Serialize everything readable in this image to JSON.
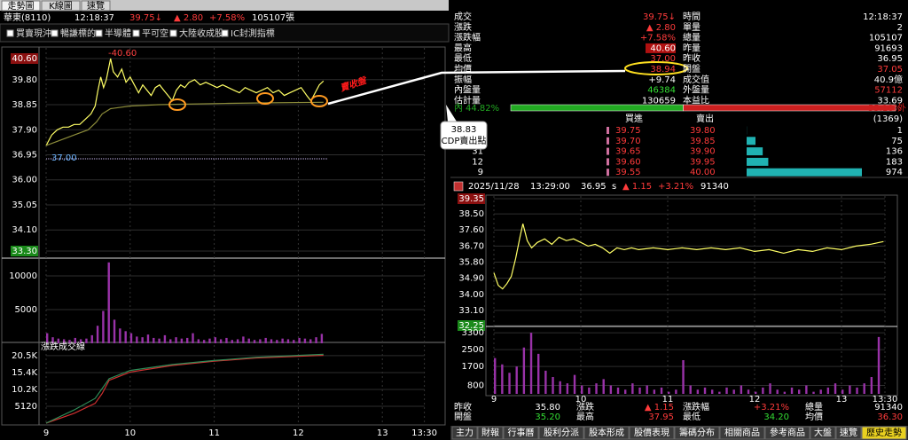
{
  "tabs": [
    "走勢圖",
    "K線圖",
    "速覽"
  ],
  "header": {
    "name": "華東(8110)",
    "time": "12:18:37",
    "price": "39.75↓",
    "change": "▲ 2.80",
    "change_pct": "+7.58%",
    "volume": "105107張"
  },
  "toolbar": [
    "買賣現沖",
    "暢謙標的",
    "半導體",
    "平可空",
    "大陸收成股",
    "IC封測指標"
  ],
  "annotations": {
    "peak": "-40.60",
    "ref_line": "37.00",
    "handwriting": "賣收盤",
    "callout_value": "38.83",
    "callout_label": "CDP賣出點"
  },
  "quote_table": [
    {
      "l1": "成交",
      "v1": "39.75↓",
      "c1": "#ff3b3b",
      "l2": "時間",
      "v2": "12:18:37",
      "c2": "#ffffff"
    },
    {
      "l1": "漲跌",
      "v1": "▲ 2.80",
      "c1": "#ff3b3b",
      "l2": "單量",
      "v2": "2",
      "c2": "#ffffff"
    },
    {
      "l1": "漲跌幅",
      "v1": "+7.58%",
      "c1": "#ff3b3b",
      "l2": "總量",
      "v2": "105107",
      "c2": "#ffffff"
    },
    {
      "l1": "最高",
      "v1": "40.60",
      "c1": "#ffffff",
      "bg1": "#b01010",
      "l2": "昨量",
      "v2": "91693",
      "c2": "#ffffff"
    },
    {
      "l1": "最低",
      "v1": "37.00",
      "c1": "#ff3b3b",
      "l2": "昨收",
      "v2": "36.95",
      "c2": "#ffffff"
    },
    {
      "l1": "均價",
      "v1": "38.94",
      "c1": "#ff3b3b",
      "l2": "開盤",
      "v2": "37.05",
      "c2": "#ff3b3b"
    },
    {
      "l1": "振幅",
      "v1": "+9.74",
      "c1": "#ffffff",
      "l2": "成交值",
      "v2": "40.9億",
      "c2": "#ffffff"
    },
    {
      "l1": "內盤量",
      "v1": "46384",
      "c1": "#33dd33",
      "l2": "外盤量",
      "v2": "57112",
      "c2": "#ff3b3b"
    },
    {
      "l1": "估計量",
      "v1": "130659",
      "c1": "#ffffff",
      "l2": "本益比",
      "v2": "33.69",
      "c2": "#ffffff"
    }
  ],
  "inner_outer": {
    "inner": {
      "label": "內",
      "value": 44.82,
      "value_label": "44.82%",
      "color": "#22aa22"
    },
    "outer": {
      "label": "外",
      "value": 55.18,
      "value_label": "55.18%",
      "color": "#cc1f1f"
    }
  },
  "order_book": {
    "bid_header": "買進",
    "ask_header": "賣出",
    "total": "(1369)",
    "bid_volumes": [
      null,
      null,
      "31",
      "12",
      "9"
    ],
    "bid_prices": [
      "39.75",
      "39.70",
      "39.65",
      "39.60",
      "39.55"
    ],
    "ask_prices": [
      "39.80",
      "39.85",
      "39.90",
      "39.95",
      "40.00"
    ],
    "ask_volumes": [
      1,
      75,
      136,
      183,
      974
    ],
    "ask_bar_color": "#20b2b2"
  },
  "history": {
    "date": "2025/11/28",
    "time": "13:29:00",
    "price": "36.95",
    "flag": "s",
    "change": "▲ 1.15",
    "change_pct": "+3.21%",
    "volume": "91340",
    "summary": [
      [
        {
          "label": "昨收",
          "value": "35.80",
          "color": "#ffffff"
        },
        {
          "label": "漲跌",
          "value": "▲ 1.15",
          "color": "#ff3b3b"
        },
        {
          "label": "漲跌幅",
          "value": "+3.21%",
          "color": "#ff3b3b"
        },
        {
          "label": "總量",
          "value": "91340",
          "color": "#ffffff"
        }
      ],
      [
        {
          "label": "開盤",
          "value": "35.20",
          "color": "#33dd33"
        },
        {
          "label": "最高",
          "value": "37.95",
          "color": "#ff3b3b"
        },
        {
          "label": "最低",
          "value": "34.20",
          "color": "#33dd33"
        },
        {
          "label": "均價",
          "value": "36.30",
          "color": "#ff3b3b"
        }
      ]
    ]
  },
  "bottom_tabs": [
    "主力",
    "財報",
    "行事曆",
    "股利分派",
    "股本形成",
    "股價表現",
    "籌碼分布",
    "相關商品",
    "參考商品",
    "大盤",
    "速覽",
    "歷史走勢"
  ],
  "charts": {
    "intraday": {
      "type": "line",
      "xlim": [
        0,
        270
      ],
      "xticks": [
        {
          "value": 0,
          "label": "9"
        },
        {
          "value": 60,
          "label": "10"
        },
        {
          "value": 120,
          "label": "11"
        },
        {
          "value": 180,
          "label": "12"
        },
        {
          "value": 240,
          "label": "13"
        },
        {
          "value": 270,
          "label": "13:30"
        }
      ],
      "price": {
        "ylim": [
          33.3,
          40.6
        ],
        "yticks": [
          {
            "value": 40.6,
            "label": "40.60",
            "bg": "#8b1010"
          },
          {
            "value": 39.8,
            "label": "39.80"
          },
          {
            "value": 38.85,
            "label": "38.85"
          },
          {
            "value": 37.9,
            "label": "37.90"
          },
          {
            "value": 36.95,
            "label": "36.95"
          },
          {
            "value": 36.0,
            "label": "36.00"
          },
          {
            "value": 35.05,
            "label": "35.05"
          },
          {
            "value": 34.1,
            "label": "34.10"
          },
          {
            "value": 33.3,
            "label": "33.30",
            "bg": "#1a8a1a"
          }
        ],
        "series": [
          {
            "color": "#ffff66",
            "x": [
              0,
              4,
              8,
              12,
              16,
              20,
              24,
              28,
              32,
              35,
              37,
              39,
              41,
              43,
              46,
              48,
              51,
              54,
              57,
              60,
              63,
              66,
              69,
              72,
              75,
              78,
              81,
              84,
              87,
              90,
              93,
              96,
              99,
              102,
              106,
              110,
              114,
              118,
              122,
              126,
              130,
              134,
              138,
              142,
              146,
              150,
              154,
              158,
              162,
              166,
              170,
              174,
              178,
              182,
              186,
              189,
              192,
              195,
              198
            ],
            "values": [
              37.3,
              37.7,
              37.9,
              38.0,
              38.0,
              38.1,
              38.1,
              38.3,
              38.5,
              38.8,
              39.4,
              39.9,
              39.5,
              39.8,
              40.6,
              40.1,
              39.9,
              40.2,
              39.7,
              39.9,
              39.6,
              39.3,
              39.6,
              39.4,
              39.2,
              39.5,
              39.6,
              39.4,
              39.2,
              39.0,
              39.4,
              39.6,
              39.5,
              39.7,
              39.8,
              39.6,
              39.7,
              39.6,
              39.5,
              39.6,
              39.5,
              39.4,
              39.3,
              39.5,
              39.4,
              39.3,
              39.4,
              39.5,
              39.3,
              39.4,
              39.2,
              39.3,
              39.4,
              39.5,
              39.2,
              39.0,
              39.3,
              39.6,
              39.75
            ]
          },
          {
            "color": "#8c8c3a",
            "x": [
              0,
              20,
              30,
              36,
              40,
              46,
              60,
              80,
              100,
              130,
              160,
              198
            ],
            "values": [
              37.3,
              37.7,
              37.9,
              38.2,
              38.5,
              38.7,
              38.8,
              38.85,
              38.87,
              38.9,
              38.92,
              38.94
            ]
          }
        ]
      },
      "volume": {
        "type": "bar",
        "color": "#9932a8",
        "ylim": [
          0,
          12500
        ],
        "yticks": [
          5000,
          10000
        ],
        "x": [
          0,
          4,
          8,
          12,
          16,
          20,
          24,
          28,
          32,
          36,
          40,
          44,
          48,
          52,
          56,
          60,
          64,
          68,
          72,
          76,
          80,
          84,
          88,
          92,
          96,
          100,
          104,
          108,
          112,
          116,
          120,
          124,
          128,
          132,
          136,
          140,
          144,
          148,
          152,
          156,
          160,
          164,
          168,
          172,
          176,
          180,
          184,
          188,
          192,
          196
        ],
        "values": [
          1500,
          900,
          700,
          600,
          500,
          800,
          600,
          700,
          1200,
          2600,
          4800,
          12000,
          3500,
          2200,
          1800,
          1500,
          1000,
          900,
          1300,
          800,
          700,
          1200,
          600,
          900,
          700,
          800,
          1500,
          600,
          500,
          700,
          900,
          600,
          800,
          500,
          600,
          1000,
          700,
          500,
          600,
          800,
          600,
          500,
          700,
          600,
          500,
          800,
          700,
          600,
          900,
          1400
        ]
      },
      "cumulative": {
        "type": "line",
        "title": "漲跌成交線",
        "ylim": [
          0,
          24500
        ],
        "yticks": [
          5120,
          {
            "value": 10240,
            "label": "10.2K"
          },
          {
            "value": 15360,
            "label": "15.4K"
          },
          {
            "value": 20480,
            "label": "20.5K"
          }
        ],
        "series": [
          {
            "color": "#d03030",
            "x": [
              0,
              20,
              35,
              40,
              45,
              60,
              90,
              120,
              150,
              198
            ],
            "values": [
              0,
              3000,
              6000,
              9000,
              13000,
              15500,
              17500,
              18800,
              19800,
              20600
            ]
          },
          {
            "color": "#2e8b57",
            "x": [
              0,
              20,
              35,
              40,
              45,
              60,
              90,
              120,
              150,
              198
            ],
            "values": [
              0,
              4000,
              7500,
              10500,
              13500,
              16000,
              17800,
              19000,
              20000,
              20900
            ]
          }
        ]
      }
    },
    "historical": {
      "type": "line",
      "xlim": [
        0,
        270
      ],
      "xticks": [
        {
          "value": 0,
          "label": "9"
        },
        {
          "value": 60,
          "label": "10"
        },
        {
          "value": 120,
          "label": "11"
        },
        {
          "value": 180,
          "label": "12"
        },
        {
          "value": 240,
          "label": "13"
        },
        {
          "value": 270,
          "label": "13:30"
        }
      ],
      "price": {
        "ylim": [
          32.25,
          39.35
        ],
        "yticks": [
          {
            "value": 39.35,
            "label": "39.35",
            "bg": "#8b1010"
          },
          {
            "value": 38.5,
            "label": "38.50"
          },
          {
            "value": 37.6,
            "label": "37.60"
          },
          {
            "value": 36.7,
            "label": "36.70"
          },
          {
            "value": 35.8,
            "label": "35.80"
          },
          {
            "value": 34.9,
            "label": "34.90"
          },
          {
            "value": 34.0,
            "label": "34.00"
          },
          {
            "value": 33.1,
            "label": "33.10"
          },
          {
            "value": 32.25,
            "label": "32.25",
            "bg": "#1a8a1a"
          }
        ],
        "series": [
          {
            "color": "#ffff66",
            "x": [
              0,
              3,
              6,
              9,
              12,
              15,
              18,
              20,
              23,
              26,
              30,
              35,
              40,
              45,
              50,
              55,
              60,
              65,
              70,
              75,
              80,
              85,
              90,
              95,
              100,
              110,
              120,
              130,
              140,
              150,
              160,
              170,
              180,
              190,
              200,
              210,
              220,
              230,
              240,
              250,
              260,
              266,
              269
            ],
            "values": [
              35.2,
              34.5,
              34.3,
              34.6,
              35.0,
              36.0,
              37.2,
              37.95,
              37.0,
              36.6,
              36.9,
              37.1,
              36.8,
              37.2,
              37.0,
              37.1,
              36.9,
              36.7,
              36.8,
              36.6,
              36.3,
              36.6,
              36.5,
              36.6,
              36.5,
              36.6,
              36.5,
              36.6,
              36.5,
              36.6,
              36.5,
              36.6,
              36.4,
              36.5,
              36.3,
              36.5,
              36.4,
              36.6,
              36.5,
              36.7,
              36.8,
              36.9,
              36.95
            ]
          }
        ]
      },
      "volume": {
        "type": "bar",
        "color": "#9932a8",
        "ylim": [
          400,
          3600
        ],
        "yticks": [
          800,
          1700,
          2500,
          3300
        ],
        "x": [
          0,
          5,
          10,
          15,
          20,
          25,
          30,
          35,
          40,
          45,
          50,
          55,
          60,
          65,
          70,
          75,
          80,
          85,
          90,
          95,
          100,
          105,
          110,
          115,
          120,
          125,
          130,
          135,
          140,
          145,
          150,
          155,
          160,
          165,
          170,
          175,
          180,
          185,
          190,
          195,
          200,
          205,
          210,
          215,
          220,
          225,
          230,
          235,
          240,
          245,
          250,
          255,
          260,
          265
        ],
        "values": [
          2100,
          1800,
          1400,
          1700,
          2600,
          3300,
          2300,
          1500,
          1200,
          1000,
          900,
          1300,
          800,
          700,
          900,
          1100,
          800,
          700,
          600,
          900,
          700,
          800,
          600,
          700,
          500,
          600,
          2000,
          800,
          600,
          700,
          600,
          500,
          700,
          600,
          800,
          600,
          500,
          700,
          900,
          600,
          500,
          700,
          600,
          800,
          500,
          600,
          700,
          900,
          600,
          800,
          700,
          900,
          1200,
          3100
        ]
      }
    }
  }
}
